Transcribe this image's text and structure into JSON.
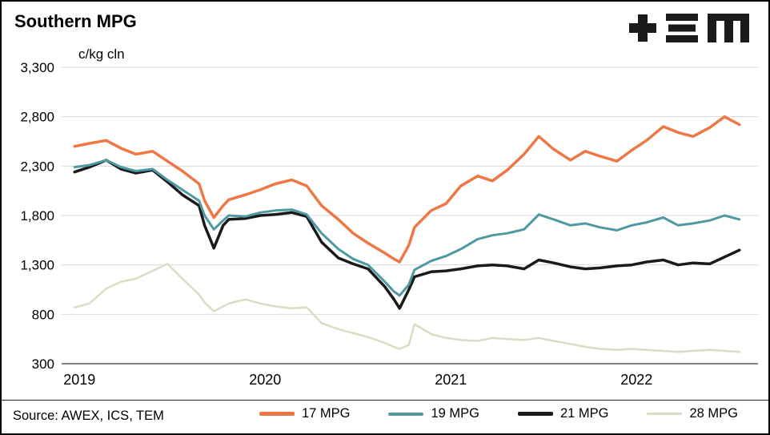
{
  "header": {
    "title": "Southern MPG",
    "logo_name": "TEM logo"
  },
  "footer": {
    "source": "Source: AWEX, ICS, TEM"
  },
  "colors": {
    "gridline": "#D9D9D9",
    "axis_line": "#595959",
    "border": "#000000",
    "logo": "#1A1A1A"
  },
  "chart_data": {
    "type": "line",
    "title": "Southern MPG",
    "unit_label": "c/kg cln",
    "xlabel": "",
    "ylabel": "c/kg cln",
    "grid": true,
    "legend_position": "bottom",
    "ylim": [
      300,
      3300
    ],
    "xlim": [
      2018.93,
      2022.68
    ],
    "y_ticks": [
      {
        "value": 3300,
        "label": "3,300"
      },
      {
        "value": 2800,
        "label": "2,800"
      },
      {
        "value": 2300,
        "label": "2,300"
      },
      {
        "value": 1800,
        "label": "1,800"
      },
      {
        "value": 1300,
        "label": "1,300"
      },
      {
        "value": 800,
        "label": "800"
      },
      {
        "value": 300,
        "label": "300"
      }
    ],
    "x_ticks": [
      {
        "value": 2019,
        "label": "2019"
      },
      {
        "value": 2020,
        "label": "2020"
      },
      {
        "value": 2021,
        "label": "2021"
      },
      {
        "value": 2022,
        "label": "2022"
      }
    ],
    "x": [
      2019.0,
      2019.08,
      2019.17,
      2019.25,
      2019.33,
      2019.42,
      2019.5,
      2019.58,
      2019.67,
      2019.7,
      2019.75,
      2019.8,
      2019.83,
      2019.92,
      2020.0,
      2020.08,
      2020.17,
      2020.25,
      2020.33,
      2020.42,
      2020.5,
      2020.58,
      2020.67,
      2020.72,
      2020.75,
      2020.8,
      2020.83,
      2020.92,
      2021.0,
      2021.08,
      2021.17,
      2021.25,
      2021.33,
      2021.42,
      2021.5,
      2021.58,
      2021.67,
      2021.75,
      2021.83,
      2021.92,
      2022.0,
      2022.08,
      2022.17,
      2022.25,
      2022.33,
      2022.42,
      2022.5,
      2022.58
    ],
    "series": [
      {
        "name": "17 MPG",
        "color": "#ED7846",
        "width": 3.5,
        "values": [
          2500,
          2530,
          2560,
          2480,
          2420,
          2450,
          2350,
          2250,
          2120,
          1950,
          1780,
          1900,
          1960,
          2010,
          2060,
          2120,
          2160,
          2100,
          1900,
          1760,
          1620,
          1520,
          1420,
          1360,
          1330,
          1500,
          1680,
          1850,
          1920,
          2100,
          2200,
          2150,
          2260,
          2420,
          2600,
          2470,
          2360,
          2450,
          2400,
          2350,
          2460,
          2560,
          2700,
          2640,
          2600,
          2690,
          2800,
          2720
        ]
      },
      {
        "name": "19 MPG",
        "color": "#4E99A2",
        "width": 3,
        "values": [
          2290,
          2310,
          2360,
          2290,
          2250,
          2270,
          2160,
          2060,
          1950,
          1800,
          1660,
          1750,
          1800,
          1790,
          1830,
          1850,
          1860,
          1810,
          1620,
          1460,
          1360,
          1300,
          1130,
          1030,
          990,
          1100,
          1250,
          1340,
          1390,
          1460,
          1560,
          1600,
          1620,
          1660,
          1810,
          1760,
          1700,
          1720,
          1680,
          1650,
          1700,
          1730,
          1780,
          1700,
          1720,
          1750,
          1800,
          1760
        ]
      },
      {
        "name": "21 MPG",
        "color": "#1A1A1A",
        "width": 3.5,
        "values": [
          2240,
          2290,
          2360,
          2270,
          2230,
          2260,
          2140,
          2010,
          1900,
          1700,
          1470,
          1700,
          1760,
          1770,
          1800,
          1810,
          1830,
          1790,
          1530,
          1370,
          1310,
          1260,
          1080,
          950,
          860,
          1050,
          1180,
          1230,
          1240,
          1260,
          1290,
          1300,
          1290,
          1260,
          1350,
          1320,
          1280,
          1260,
          1270,
          1290,
          1300,
          1330,
          1350,
          1300,
          1320,
          1310,
          1380,
          1450
        ]
      },
      {
        "name": "28 MPG",
        "color": "#DBDCC4",
        "width": 2.5,
        "values": [
          870,
          910,
          1060,
          1130,
          1160,
          1240,
          1310,
          1160,
          1000,
          920,
          830,
          880,
          910,
          950,
          910,
          880,
          860,
          870,
          710,
          650,
          610,
          570,
          510,
          470,
          450,
          490,
          700,
          600,
          560,
          540,
          530,
          560,
          550,
          540,
          560,
          530,
          500,
          470,
          450,
          440,
          450,
          440,
          430,
          420,
          430,
          440,
          430,
          420
        ]
      }
    ]
  }
}
